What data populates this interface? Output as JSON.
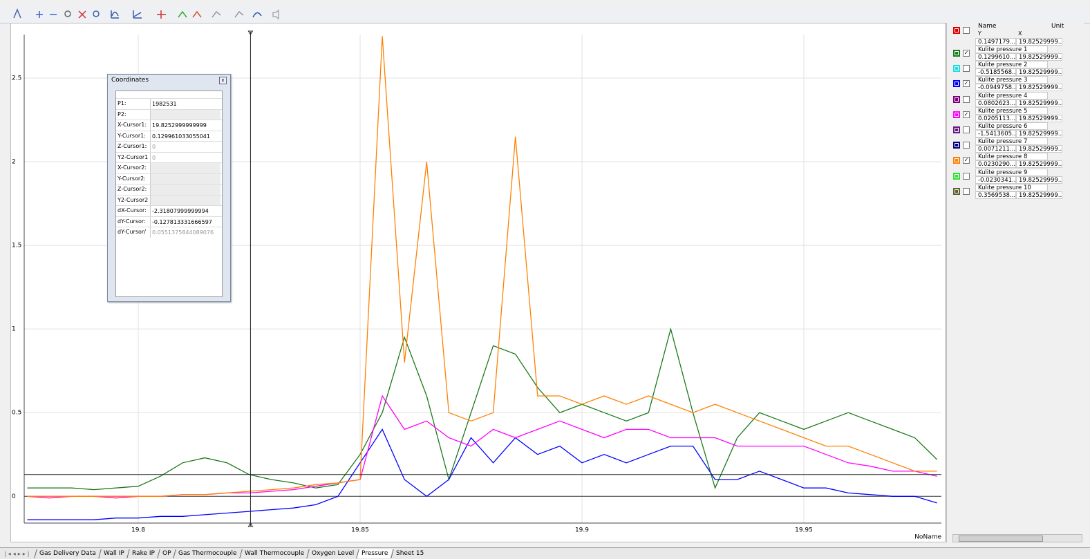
{
  "chart": {
    "type": "line",
    "x": [
      19.775,
      19.78,
      19.785,
      19.79,
      19.795,
      19.8,
      19.805,
      19.81,
      19.815,
      19.82,
      19.825,
      19.83,
      19.835,
      19.84,
      19.845,
      19.85,
      19.855,
      19.86,
      19.865,
      19.87,
      19.875,
      19.88,
      19.885,
      19.89,
      19.895,
      19.9,
      19.905,
      19.91,
      19.915,
      19.92,
      19.925,
      19.93,
      19.935,
      19.94,
      19.945,
      19.95,
      19.955,
      19.96,
      19.965,
      19.97,
      19.975,
      19.98
    ],
    "series": [
      {
        "name": "Kulite pressure 1",
        "color": "#1a7a1a",
        "values": [
          0.05,
          0.05,
          0.05,
          0.04,
          0.05,
          0.06,
          0.12,
          0.2,
          0.23,
          0.2,
          0.13,
          0.1,
          0.08,
          0.05,
          0.07,
          0.25,
          0.5,
          0.95,
          0.6,
          0.1,
          0.5,
          0.9,
          0.85,
          0.65,
          0.5,
          0.55,
          0.5,
          0.45,
          0.5,
          1.0,
          0.5,
          0.05,
          0.35,
          0.5,
          0.45,
          0.4,
          0.45,
          0.5,
          0.45,
          0.4,
          0.35,
          0.22
        ]
      },
      {
        "name": "Kulite pressure 3",
        "color": "#0000ff",
        "values": [
          -0.14,
          -0.14,
          -0.14,
          -0.14,
          -0.13,
          -0.13,
          -0.12,
          -0.12,
          -0.11,
          -0.1,
          -0.09,
          -0.08,
          -0.07,
          -0.05,
          0.0,
          0.2,
          0.4,
          0.1,
          0.0,
          0.1,
          0.35,
          0.2,
          0.35,
          0.25,
          0.3,
          0.2,
          0.25,
          0.2,
          0.25,
          0.3,
          0.3,
          0.1,
          0.1,
          0.15,
          0.1,
          0.05,
          0.05,
          0.02,
          0.01,
          0.0,
          0.0,
          -0.04
        ]
      },
      {
        "name": "Kulite pressure 5",
        "color": "#ff00ff",
        "values": [
          0.0,
          -0.01,
          0.0,
          0.0,
          -0.01,
          0.0,
          0.0,
          0.01,
          0.01,
          0.02,
          0.02,
          0.03,
          0.04,
          0.06,
          0.08,
          0.1,
          0.6,
          0.4,
          0.45,
          0.35,
          0.3,
          0.4,
          0.35,
          0.4,
          0.45,
          0.4,
          0.35,
          0.4,
          0.4,
          0.35,
          0.35,
          0.35,
          0.3,
          0.3,
          0.3,
          0.3,
          0.25,
          0.2,
          0.18,
          0.15,
          0.15,
          0.12
        ]
      },
      {
        "name": "Kulite pressure 8",
        "color": "#ff8000",
        "values": [
          0.0,
          0.0,
          0.0,
          0.0,
          0.0,
          0.0,
          0.0,
          0.01,
          0.01,
          0.02,
          0.03,
          0.04,
          0.05,
          0.07,
          0.08,
          0.1,
          2.75,
          0.8,
          2.0,
          0.5,
          0.45,
          0.5,
          2.15,
          0.6,
          0.6,
          0.55,
          0.6,
          0.55,
          0.6,
          0.55,
          0.5,
          0.55,
          0.5,
          0.45,
          0.4,
          0.35,
          0.3,
          0.3,
          0.25,
          0.2,
          0.15,
          0.15
        ]
      }
    ],
    "xlim": [
      19.7743,
      19.981
    ],
    "ylim": [
      -0.16,
      2.76
    ],
    "xticks": [
      19.8,
      19.85,
      19.9,
      19.95
    ],
    "yticks": [
      0,
      0.5,
      1,
      1.5,
      2,
      2.5
    ],
    "grid": true,
    "axis_name": "NoName"
  },
  "coordinates_dialog": {
    "title": "Coordinates",
    "rows": [
      {
        "label": "P1:",
        "value": "1982531"
      },
      {
        "label": "P2:"
      },
      {
        "label": "X-Cursor1:",
        "value": "19.8252999999999"
      },
      {
        "label": "Y-Cursor1:",
        "value": "0.129961033055041"
      },
      {
        "label": "Z-Cursor1:",
        "value": "0",
        "dim": true
      },
      {
        "label": "Y2-Cursor1",
        "value": "0",
        "dim": true
      },
      {
        "label": "X-Cursor2:"
      },
      {
        "label": "Y-Cursor2:"
      },
      {
        "label": "Z-Cursor2:"
      },
      {
        "label": "Y2-Cursor2"
      },
      {
        "label": "dX-Cursor:",
        "value": "-2.31807999999994"
      },
      {
        "label": "dY-Cursor:",
        "value": "-0.127813331666597"
      },
      {
        "label": "dY-Cursor/",
        "value": "0.0551375844089076",
        "dim": true
      }
    ]
  },
  "channel_list": {
    "headers": {
      "name": "Name",
      "unit": "Unit",
      "y": "Y",
      "x": "X"
    },
    "rows": [
      {
        "y": "0.1497179...",
        "x": "19.82529999...",
        "color": "#e00000",
        "checked": false
      },
      {
        "name": "Kulite pressure 1",
        "y": "0.1299610...",
        "x": "19.82529999...",
        "color": "#1a7a1a",
        "checked": true
      },
      {
        "name": "Kulite pressure 2",
        "y": "-0.5185568...",
        "x": "19.82529999...",
        "color": "#22dddd",
        "checked": false
      },
      {
        "name": "Kulite pressure 3",
        "y": "-0.0949758...",
        "x": "19.82529999...",
        "color": "#0000ff",
        "checked": true
      },
      {
        "name": "Kulite pressure 4",
        "y": "0.0802623...",
        "x": "19.82529999...",
        "color": "#800080",
        "checked": false
      },
      {
        "name": "Kulite pressure 5",
        "y": "0.0205113...",
        "x": "19.82529999...",
        "color": "#ff00ff",
        "checked": true
      },
      {
        "name": "Kulite pressure 6",
        "y": "-1.5413605...",
        "x": "19.82529999...",
        "color": "#6a1a80",
        "checked": false
      },
      {
        "name": "Kulite pressure 7",
        "y": "0.0071211...",
        "x": "19.82529999...",
        "color": "#000080",
        "checked": false
      },
      {
        "name": "Kulite pressure 8",
        "y": "0.0230290...",
        "x": "19.82529999...",
        "color": "#ff8000",
        "checked": true
      },
      {
        "name": "Kulite pressure 9",
        "y": "-0.0230341...",
        "x": "19.82529999...",
        "color": "#33dd33",
        "checked": false
      },
      {
        "name": "Kulite pressure 10",
        "y": "0.3569538...",
        "x": "19.82529999...",
        "color": "#606030",
        "checked": false
      }
    ]
  },
  "tabs": [
    "Gas Delivery Data",
    "Wall IP",
    "Rake IP",
    "OP",
    "Gas Thermocouple",
    "Wall Thermocouple",
    "Oxygen Level",
    "Pressure",
    "Sheet 15"
  ],
  "active_tab": 7
}
